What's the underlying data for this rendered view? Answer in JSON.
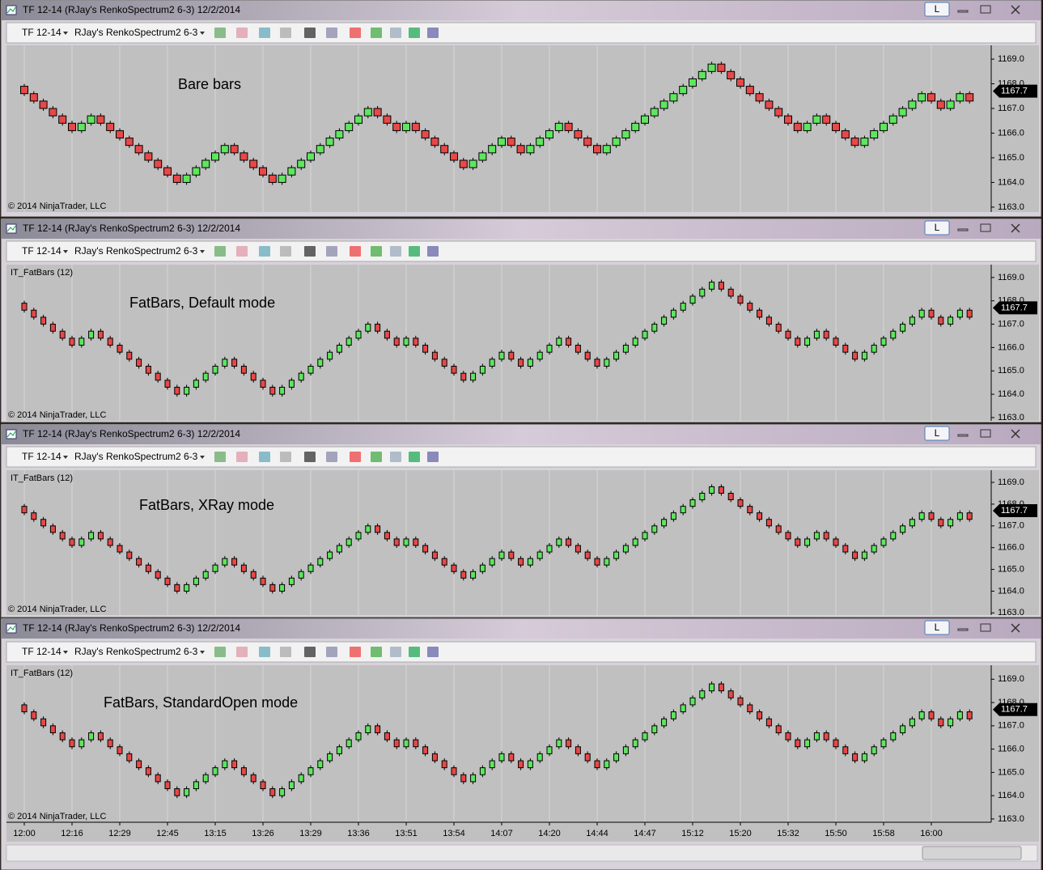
{
  "bricks": {
    "first_open": 1167.9,
    "closes": [
      1167.6,
      1167.3,
      1167.0,
      1166.7,
      1166.4,
      1166.1,
      1166.4,
      1166.7,
      1166.4,
      1166.1,
      1165.8,
      1165.5,
      1165.2,
      1164.9,
      1164.6,
      1164.3,
      1164.0,
      1164.3,
      1164.6,
      1164.9,
      1165.2,
      1165.5,
      1165.2,
      1164.9,
      1164.6,
      1164.3,
      1164.0,
      1164.3,
      1164.6,
      1164.9,
      1165.2,
      1165.5,
      1165.8,
      1166.1,
      1166.4,
      1166.7,
      1167.0,
      1166.7,
      1166.4,
      1166.1,
      1166.4,
      1166.1,
      1165.8,
      1165.5,
      1165.2,
      1164.9,
      1164.6,
      1164.9,
      1165.2,
      1165.5,
      1165.8,
      1165.5,
      1165.2,
      1165.5,
      1165.8,
      1166.1,
      1166.4,
      1166.1,
      1165.8,
      1165.5,
      1165.2,
      1165.5,
      1165.8,
      1166.1,
      1166.4,
      1166.7,
      1167.0,
      1167.3,
      1167.6,
      1167.9,
      1168.2,
      1168.5,
      1168.8,
      1168.5,
      1168.2,
      1167.9,
      1167.6,
      1167.3,
      1167.0,
      1166.7,
      1166.4,
      1166.1,
      1166.4,
      1166.7,
      1166.4,
      1166.1,
      1165.8,
      1165.5,
      1165.8,
      1166.1,
      1166.4,
      1166.7,
      1167.0,
      1167.3,
      1167.6,
      1167.3,
      1167.0,
      1167.3,
      1167.6,
      1167.3
    ],
    "up_color": "#5ee65e",
    "down_color": "#e84848"
  },
  "time_labels": [
    "12:00",
    "12:16",
    "12:29",
    "12:45",
    "13:15",
    "13:26",
    "13:29",
    "13:36",
    "13:51",
    "13:54",
    "14:07",
    "14:20",
    "14:44",
    "14:47",
    "15:12",
    "15:20",
    "15:32",
    "15:50",
    "15:58",
    "16:00"
  ],
  "windows": [
    {
      "title": "TF 12-14 (RJay's RenkoSpectrum2  6-3)  12/2/2014",
      "button": "L",
      "toolbar": {
        "instrument": "TF 12-14",
        "chart": "RJay's RenkoSpectrum2  6-3"
      },
      "chart": {
        "type": "renko",
        "annotation": "Bare bars",
        "copyright": "© 2014 NinjaTrader, LLC",
        "ylim": [
          1162.8,
          1169.56
        ],
        "yticks": [
          {
            "value": 1163,
            "label": "1163.0"
          },
          {
            "value": 1164,
            "label": "1164.0"
          },
          {
            "value": 1165,
            "label": "1165.0"
          },
          {
            "value": 1166,
            "label": "1166.0"
          },
          {
            "value": 1167,
            "label": "1167.0"
          },
          {
            "value": 1168,
            "label": "1168.0"
          },
          {
            "value": 1169,
            "label": "1169.0"
          }
        ],
        "last_price": 1167.7,
        "grid": true
      }
    },
    {
      "title": "TF 12-14 (RJay's RenkoSpectrum2  6-3)  12/2/2014",
      "button": "L",
      "toolbar": {
        "instrument": "TF 12-14",
        "chart": "RJay's RenkoSpectrum2  6-3"
      },
      "chart": {
        "type": "fatbars",
        "indicator": "IT_FatBars (12)",
        "annotation": "FatBars, Default mode",
        "copyright": "© 2014 NinjaTrader, LLC",
        "ylim": [
          1162.86,
          1169.55
        ],
        "yticks": [
          {
            "value": 1163,
            "label": "1163.0"
          },
          {
            "value": 1164,
            "label": "1164.0"
          },
          {
            "value": 1165,
            "label": "1165.0"
          },
          {
            "value": 1166,
            "label": "1166.0"
          },
          {
            "value": 1167,
            "label": "1167.0"
          },
          {
            "value": 1168,
            "label": "1168.0"
          },
          {
            "value": 1169,
            "label": "1169.0"
          }
        ],
        "last_price": 1167.7,
        "grid": true
      }
    },
    {
      "title": "TF 12-14 (RJay's RenkoSpectrum2  6-3)  12/2/2014",
      "button": "L",
      "toolbar": {
        "instrument": "TF 12-14",
        "chart": "RJay's RenkoSpectrum2  6-3"
      },
      "chart": {
        "type": "fatbars",
        "indicator": "IT_FatBars (12)",
        "annotation": "FatBars, XRay mode",
        "copyright": "© 2014 NinjaTrader, LLC",
        "ylim": [
          1162.9,
          1169.56
        ],
        "yticks": [
          {
            "value": 1163,
            "label": "1163.0"
          },
          {
            "value": 1164,
            "label": "1164.0"
          },
          {
            "value": 1165,
            "label": "1165.0"
          },
          {
            "value": 1166,
            "label": "1166.0"
          },
          {
            "value": 1167,
            "label": "1167.0"
          },
          {
            "value": 1168,
            "label": "1168.0"
          },
          {
            "value": 1169,
            "label": "1169.0"
          }
        ],
        "last_price": 1167.7,
        "grid": true
      }
    },
    {
      "title": "TF 12-14 (RJay's RenkoSpectrum2  6-3)  12/2/2014",
      "button": "L",
      "toolbar": {
        "instrument": "TF 12-14",
        "chart": "RJay's RenkoSpectrum2  6-3"
      },
      "chart": {
        "type": "fatbars",
        "indicator": "IT_FatBars (12)",
        "annotation": "FatBars, StandardOpen mode",
        "copyright": "© 2014 NinjaTrader, LLC",
        "ylim": [
          1162.86,
          1169.6
        ],
        "yticks": [
          {
            "value": 1163,
            "label": "1163.0"
          },
          {
            "value": 1164,
            "label": "1164.0"
          },
          {
            "value": 1165,
            "label": "1165.0"
          },
          {
            "value": 1166,
            "label": "1166.0"
          },
          {
            "value": 1167,
            "label": "1167.0"
          },
          {
            "value": 1168,
            "label": "1168.0"
          },
          {
            "value": 1169,
            "label": "1169.0"
          }
        ],
        "last_price": 1167.7,
        "grid": true,
        "time_axis": true
      }
    }
  ]
}
